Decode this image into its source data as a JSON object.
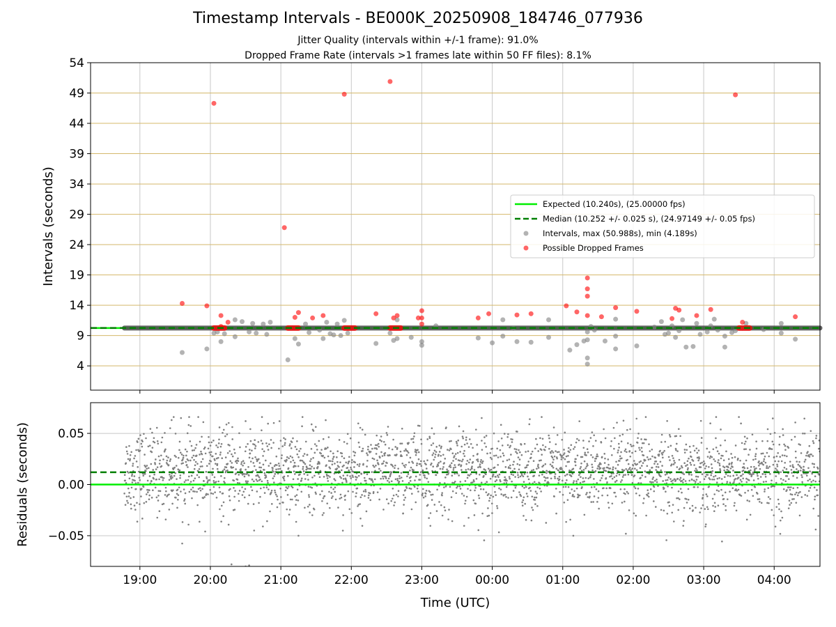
{
  "figure": {
    "title": "Timestamp Intervals - BE000K_20250908_184746_077936",
    "subtitle_1": "Jitter Quality (intervals within +/-1 frame): 91.0%",
    "subtitle_2": "Dropped Frame Rate (intervals >1 frames late within 50 FF files): 8.1%"
  },
  "colors": {
    "expected": "#00ee00",
    "median": "#007f00",
    "intervals": "#808080",
    "dropped": "#ff0000",
    "hgrid": "#d4b86a",
    "vgrid": "#c8c8c8",
    "intervals_band": "#4a4a4a"
  },
  "chart_data": [
    {
      "type": "scatter",
      "panel": "intervals",
      "ylabel": "Intervals (seconds)",
      "xlabel": "",
      "ylim": [
        0,
        54
      ],
      "yticks": [
        4,
        9,
        14,
        19,
        24,
        29,
        34,
        39,
        44,
        49,
        54
      ],
      "xlim_hours": [
        -0.7,
        9.65
      ],
      "x_unit": "hours after 19:00 UTC (ticks labelled HH:MM)",
      "xticks_labels": [
        "19:00",
        "20:00",
        "21:00",
        "22:00",
        "23:00",
        "00:00",
        "01:00",
        "02:00",
        "03:00",
        "04:00"
      ],
      "grid": "horizontal lines at y ticks, vertical lines at x ticks",
      "legend_position": "right",
      "legend": [
        {
          "label": "Expected (10.240s), (25.00000 fps)",
          "kind": "solid-line",
          "color": "#00ee00"
        },
        {
          "label": "Median (10.252 +/- 0.025 s), (24.97149 +/- 0.05 fps)",
          "kind": "dashed-line",
          "color": "#007f00"
        },
        {
          "label": "Intervals, max (50.988s), min (4.189s)",
          "kind": "dot",
          "color": "#808080"
        },
        {
          "label": "Possible Dropped Frames",
          "kind": "dot",
          "color": "#ff0000"
        }
      ],
      "expected_value": 10.24,
      "median_value": 10.252,
      "intervals_x_range": [
        -0.22,
        9.65
      ],
      "intervals_band_value": 10.24,
      "intervals_points": [
        [
          0.6,
          6.2
        ],
        [
          0.95,
          6.8
        ],
        [
          1.05,
          9.4
        ],
        [
          1.1,
          9.6
        ],
        [
          1.15,
          8.0
        ],
        [
          1.2,
          9.3
        ],
        [
          1.35,
          8.8
        ],
        [
          1.35,
          11.6
        ],
        [
          1.45,
          11.3
        ],
        [
          1.55,
          9.6
        ],
        [
          1.6,
          11.0
        ],
        [
          1.65,
          9.4
        ],
        [
          1.75,
          10.9
        ],
        [
          1.8,
          9.2
        ],
        [
          1.85,
          11.2
        ],
        [
          2.1,
          5.0
        ],
        [
          2.2,
          8.5
        ],
        [
          2.25,
          7.6
        ],
        [
          2.35,
          10.9
        ],
        [
          2.4,
          9.5
        ],
        [
          2.55,
          9.9
        ],
        [
          2.6,
          8.5
        ],
        [
          2.65,
          11.2
        ],
        [
          2.7,
          9.3
        ],
        [
          2.75,
          9.1
        ],
        [
          2.8,
          10.9
        ],
        [
          2.85,
          9.0
        ],
        [
          2.9,
          11.5
        ],
        [
          2.95,
          9.4
        ],
        [
          3.35,
          7.7
        ],
        [
          3.55,
          9.4
        ],
        [
          3.6,
          8.2
        ],
        [
          3.65,
          8.5
        ],
        [
          3.65,
          11.6
        ],
        [
          3.85,
          8.7
        ],
        [
          4.0,
          8.0
        ],
        [
          4.0,
          7.4
        ],
        [
          4.2,
          10.6
        ],
        [
          4.8,
          8.6
        ],
        [
          5.0,
          7.8
        ],
        [
          5.15,
          11.6
        ],
        [
          5.15,
          8.9
        ],
        [
          5.3,
          10.2
        ],
        [
          5.35,
          8.0
        ],
        [
          5.55,
          7.9
        ],
        [
          5.8,
          11.6
        ],
        [
          5.8,
          8.7
        ],
        [
          6.1,
          6.6
        ],
        [
          6.2,
          7.5
        ],
        [
          6.3,
          8.1
        ],
        [
          6.35,
          4.3
        ],
        [
          6.35,
          5.3
        ],
        [
          6.35,
          8.3
        ],
        [
          6.35,
          9.6
        ],
        [
          6.4,
          10.5
        ],
        [
          6.45,
          9.9
        ],
        [
          6.6,
          8.1
        ],
        [
          6.75,
          11.7
        ],
        [
          6.75,
          8.9
        ],
        [
          6.75,
          6.8
        ],
        [
          7.05,
          7.3
        ],
        [
          7.3,
          10.4
        ],
        [
          7.4,
          11.3
        ],
        [
          7.45,
          9.2
        ],
        [
          7.5,
          9.4
        ],
        [
          7.55,
          10.6
        ],
        [
          7.6,
          8.7
        ],
        [
          7.65,
          9.8
        ],
        [
          7.7,
          11.6
        ],
        [
          7.75,
          7.1
        ],
        [
          7.85,
          7.2
        ],
        [
          7.9,
          11.0
        ],
        [
          7.95,
          9.2
        ],
        [
          8.05,
          9.6
        ],
        [
          8.1,
          10.6
        ],
        [
          8.15,
          11.7
        ],
        [
          8.2,
          9.9
        ],
        [
          8.3,
          8.9
        ],
        [
          8.3,
          7.1
        ],
        [
          8.4,
          9.5
        ],
        [
          8.45,
          9.8
        ],
        [
          8.55,
          10.2
        ],
        [
          8.6,
          11.0
        ],
        [
          8.85,
          10.0
        ],
        [
          9.1,
          11.0
        ],
        [
          9.1,
          9.4
        ],
        [
          9.3,
          8.4
        ]
      ],
      "dropped_points": [
        [
          0.6,
          14.3
        ],
        [
          0.95,
          13.9
        ],
        [
          1.05,
          47.3
        ],
        [
          1.15,
          10.5
        ],
        [
          1.15,
          12.3
        ],
        [
          1.25,
          11.2
        ],
        [
          2.05,
          26.8
        ],
        [
          2.2,
          12.0
        ],
        [
          2.25,
          12.8
        ],
        [
          2.45,
          11.9
        ],
        [
          2.6,
          12.3
        ],
        [
          2.9,
          48.8
        ],
        [
          3.35,
          12.6
        ],
        [
          3.55,
          50.9
        ],
        [
          3.6,
          11.9
        ],
        [
          3.65,
          12.3
        ],
        [
          3.95,
          11.9
        ],
        [
          4.0,
          13.1
        ],
        [
          4.0,
          11.9
        ],
        [
          4.0,
          10.9
        ],
        [
          4.8,
          11.9
        ],
        [
          4.95,
          12.6
        ],
        [
          5.35,
          12.4
        ],
        [
          5.55,
          12.6
        ],
        [
          6.05,
          13.9
        ],
        [
          6.2,
          12.9
        ],
        [
          6.35,
          18.5
        ],
        [
          6.35,
          16.7
        ],
        [
          6.35,
          15.5
        ],
        [
          6.35,
          12.3
        ],
        [
          6.55,
          12.1
        ],
        [
          6.75,
          13.6
        ],
        [
          7.05,
          13.0
        ],
        [
          7.55,
          11.8
        ],
        [
          7.6,
          13.5
        ],
        [
          7.65,
          13.2
        ],
        [
          7.9,
          12.3
        ],
        [
          8.1,
          13.3
        ],
        [
          8.45,
          48.7
        ],
        [
          8.55,
          11.2
        ],
        [
          9.3,
          12.1
        ]
      ],
      "dropped_clusters": [
        {
          "x_start": 1.05,
          "x_end": 1.2,
          "value": 10.24
        },
        {
          "x_start": 2.1,
          "x_end": 2.25,
          "value": 10.24
        },
        {
          "x_start": 2.9,
          "x_end": 3.05,
          "value": 10.24
        },
        {
          "x_start": 3.55,
          "x_end": 3.7,
          "value": 10.24
        },
        {
          "x_start": 8.5,
          "x_end": 8.65,
          "value": 10.24
        }
      ]
    },
    {
      "type": "scatter",
      "panel": "residuals",
      "ylabel": "Residuals (seconds)",
      "xlabel": "Time (UTC)",
      "ylim": [
        -0.08,
        0.08
      ],
      "yticks": [
        -0.05,
        0.0,
        0.05
      ],
      "yticks_labels": [
        "−0.05",
        "0.00",
        "0.05"
      ],
      "xlim_hours": [
        -0.7,
        9.65
      ],
      "xticks_labels": [
        "19:00",
        "20:00",
        "21:00",
        "22:00",
        "23:00",
        "00:00",
        "01:00",
        "02:00",
        "03:00",
        "04:00"
      ],
      "grid": "horizontal and vertical lines at ticks",
      "expected_value": 0.0,
      "median_value": 0.012,
      "residuals_x_range": [
        -0.22,
        9.65
      ],
      "residuals_center": 0.012,
      "residuals_spread": 0.02,
      "residuals_count": 2800,
      "residuals_outliers": [
        [
          1.3,
          -0.078
        ],
        [
          1.5,
          -0.08
        ],
        [
          1.55,
          -0.079
        ],
        [
          0.45,
          0.063
        ],
        [
          0.9,
          0.061
        ],
        [
          1.5,
          0.062
        ],
        [
          4.85,
          0.065
        ],
        [
          6.15,
          -0.05
        ],
        [
          2.25,
          -0.05
        ]
      ]
    }
  ]
}
